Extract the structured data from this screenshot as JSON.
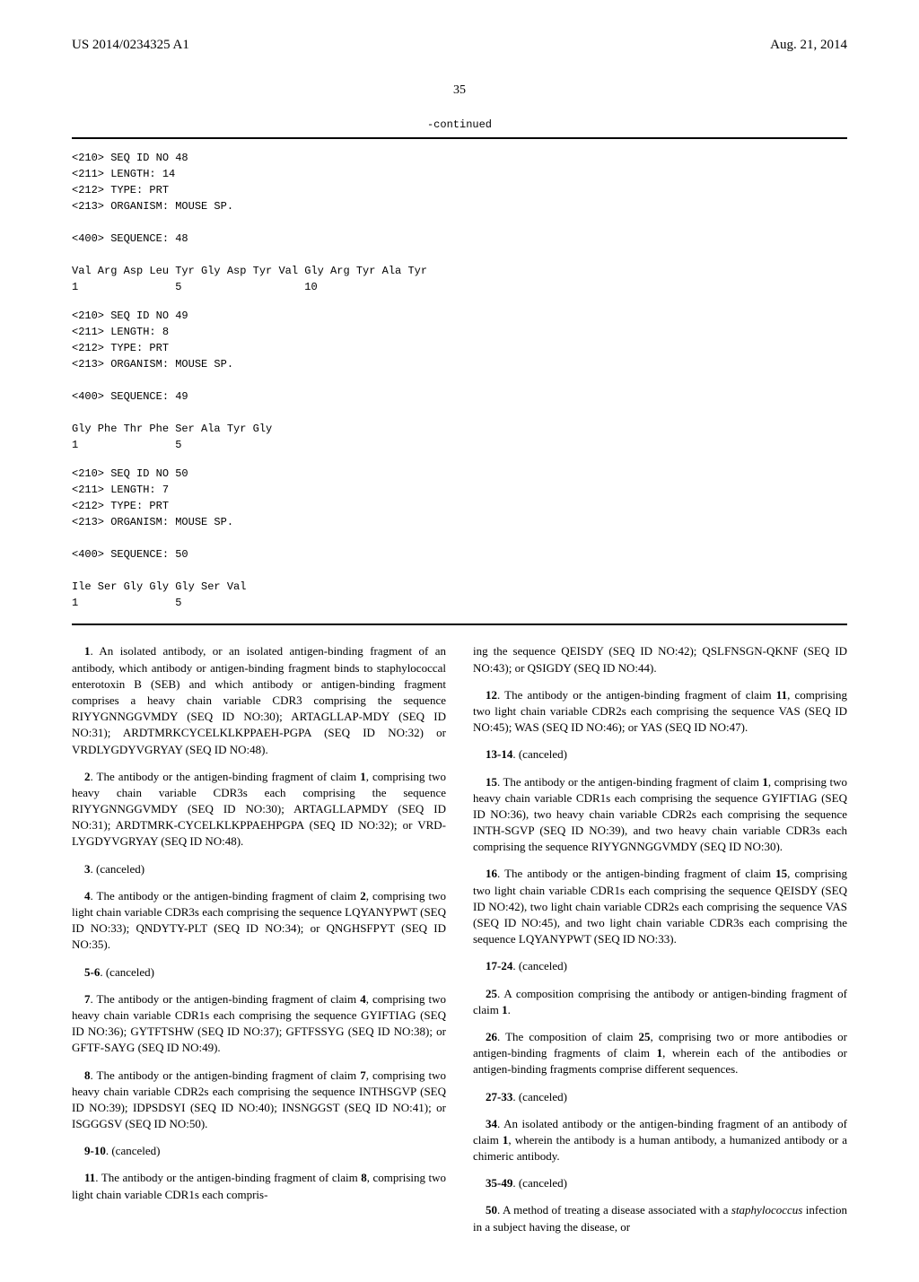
{
  "header": {
    "pub_number": "US 2014/0234325 A1",
    "date": "Aug. 21, 2014"
  },
  "page_number": "35",
  "continued_label": "-continued",
  "sequences": [
    {
      "lines": [
        "<210> SEQ ID NO 48",
        "<211> LENGTH: 14",
        "<212> TYPE: PRT",
        "<213> ORGANISM: MOUSE SP.",
        "",
        "<400> SEQUENCE: 48",
        "",
        "Val Arg Asp Leu Tyr Gly Asp Tyr Val Gly Arg Tyr Ala Tyr",
        "1               5                   10"
      ]
    },
    {
      "lines": [
        "<210> SEQ ID NO 49",
        "<211> LENGTH: 8",
        "<212> TYPE: PRT",
        "<213> ORGANISM: MOUSE SP.",
        "",
        "<400> SEQUENCE: 49",
        "",
        "Gly Phe Thr Phe Ser Ala Tyr Gly",
        "1               5"
      ]
    },
    {
      "lines": [
        "<210> SEQ ID NO 50",
        "<211> LENGTH: 7",
        "<212> TYPE: PRT",
        "<213> ORGANISM: MOUSE SP.",
        "",
        "<400> SEQUENCE: 50",
        "",
        "Ile Ser Gly Gly Gly Ser Val",
        "1               5"
      ]
    }
  ],
  "claims_left": [
    {
      "num": "1",
      "text": ". An isolated antibody, or an isolated antigen-binding fragment of an antibody, which antibody or antigen-binding fragment binds to staphylococcal enterotoxin B (SEB) and which antibody or antigen-binding fragment comprises a heavy chain variable CDR3 comprising the sequence RIYYGNNGGVMDY (SEQ ID NO:30); ARTAGLLAP-MDY (SEQ ID NO:31); ARDTMRKCYCELKLKPPAEH-PGPA (SEQ ID NO:32) or VRDLYGDYVGRYAY (SEQ ID NO:48)."
    },
    {
      "num": "2",
      "text": ". The antibody or the antigen-binding fragment of claim 1, comprising two heavy chain variable CDR3s each comprising the sequence RIYYGNNGGVMDY (SEQ ID NO:30); ARTAGLLAPMDY (SEQ ID NO:31); ARDTMRK-CYCELKLKPPAEHPGPA (SEQ ID NO:32); or VRD-LYGDYVGRYAY (SEQ ID NO:48)."
    },
    {
      "num": "3",
      "text": ". (canceled)",
      "canceled": true
    },
    {
      "num": "4",
      "text": ". The antibody or the antigen-binding fragment of claim 2, comprising two light chain variable CDR3s each comprising the sequence LQYANYPWT (SEQ ID NO:33); QNDYTY-PLT (SEQ ID NO:34); or QNGHSFPYT (SEQ ID NO:35)."
    },
    {
      "num": "5-6",
      "text": ". (canceled)",
      "canceled": true
    },
    {
      "num": "7",
      "text": ". The antibody or the antigen-binding fragment of claim 4, comprising two heavy chain variable CDR1s each comprising the sequence GYIFTIAG (SEQ ID NO:36); GYTFTSHW (SEQ ID NO:37); GFTFSSYG (SEQ ID NO:38); or GFTF-SAYG (SEQ ID NO:49)."
    },
    {
      "num": "8",
      "text": ". The antibody or the antigen-binding fragment of claim 7, comprising two heavy chain variable CDR2s each comprising the sequence INTHSGVP (SEQ ID NO:39); IDPSDSYI (SEQ ID NO:40); INSNGGST (SEQ ID NO:41); or ISGGGSV (SEQ ID NO:50)."
    },
    {
      "num": "9-10",
      "text": ". (canceled)",
      "canceled": true
    },
    {
      "num": "11",
      "text": ". The antibody or the antigen-binding fragment of claim 8, comprising two light chain variable CDR1s each compris-",
      "partial": true
    }
  ],
  "claims_right": [
    {
      "text": "ing the sequence QEISDY (SEQ ID NO:42); QSLFNSGN-QKNF (SEQ ID NO:43); or QSIGDY (SEQ ID NO:44).",
      "continuation": true
    },
    {
      "num": "12",
      "text": ". The antibody or the antigen-binding fragment of claim 11, comprising two light chain variable CDR2s each comprising the sequence VAS (SEQ ID NO:45); WAS (SEQ ID NO:46); or YAS (SEQ ID NO:47)."
    },
    {
      "num": "13-14",
      "text": ". (canceled)",
      "canceled": true
    },
    {
      "num": "15",
      "text": ". The antibody or the antigen-binding fragment of claim 1, comprising two heavy chain variable CDR1s each comprising the sequence GYIFTIAG (SEQ ID NO:36), two heavy chain variable CDR2s each comprising the sequence INTH-SGVP (SEQ ID NO:39), and two heavy chain variable CDR3s each comprising the sequence RIYYGNNGGVMDY (SEQ ID NO:30)."
    },
    {
      "num": "16",
      "text": ". The antibody or the antigen-binding fragment of claim 15, comprising two light chain variable CDR1s each comprising the sequence QEISDY (SEQ ID NO:42), two light chain variable CDR2s each comprising the sequence VAS (SEQ ID NO:45), and two light chain variable CDR3s each comprising the sequence LQYANYPWT (SEQ ID NO:33)."
    },
    {
      "num": "17-24",
      "text": ". (canceled)",
      "canceled": true
    },
    {
      "num": "25",
      "text": ". A composition comprising the antibody or antigen-binding fragment of claim 1."
    },
    {
      "num": "26",
      "text": ". The composition of claim 25, comprising two or more antibodies or antigen-binding fragments of claim 1, wherein each of the antibodies or antigen-binding fragments comprise different sequences."
    },
    {
      "num": "27-33",
      "text": ". (canceled)",
      "canceled": true
    },
    {
      "num": "34",
      "text": ". An isolated antibody or the antigen-binding fragment of an antibody of claim 1, wherein the antibody is a human antibody, a humanized antibody or a chimeric antibody."
    },
    {
      "num": "35-49",
      "text": ". (canceled)",
      "canceled": true
    },
    {
      "num": "50",
      "text": ". A method of treating a disease associated with a ",
      "italic_part": "staphylococcus",
      "text_after": " infection in a subject having the disease, or",
      "partial": true
    }
  ]
}
